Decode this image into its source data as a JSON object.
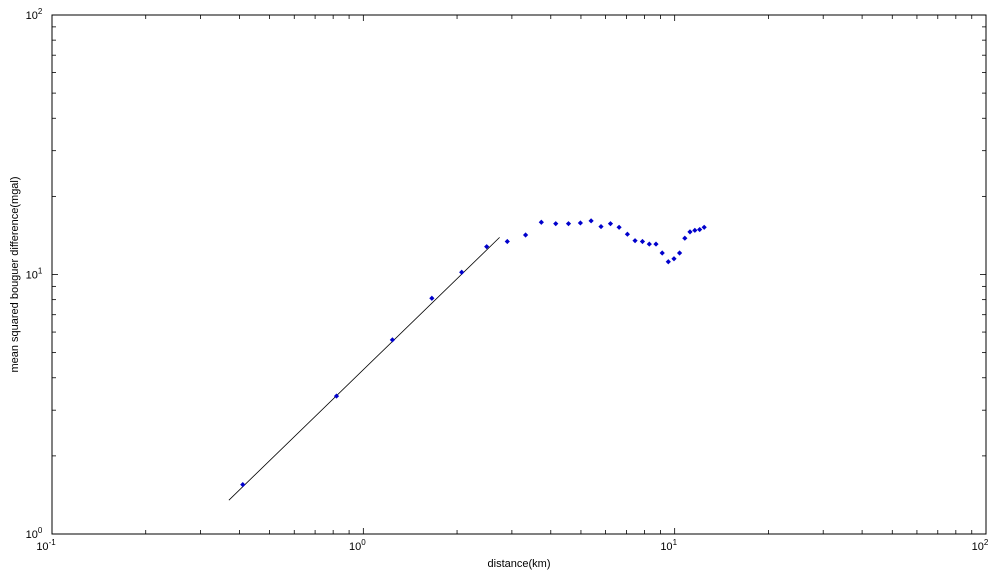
{
  "chart_data": {
    "type": "scatter",
    "title": "",
    "xlabel": "distance(km)",
    "ylabel": "mean squared bouguer difference(mgal)",
    "xscale": "log",
    "yscale": "log",
    "xlim": [
      0.1,
      100
    ],
    "ylim": [
      1,
      100
    ],
    "grid": false,
    "x_ticks": [
      {
        "value": 0.1,
        "base": "10",
        "exp": "-1"
      },
      {
        "value": 1,
        "base": "10",
        "exp": "0"
      },
      {
        "value": 10,
        "base": "10",
        "exp": "1"
      },
      {
        "value": 100,
        "base": "10",
        "exp": "2"
      }
    ],
    "y_ticks": [
      {
        "value": 1,
        "base": "10",
        "exp": "0"
      },
      {
        "value": 10,
        "base": "10",
        "exp": "1"
      },
      {
        "value": 100,
        "base": "10",
        "exp": "2"
      }
    ],
    "points_color": "#0000cc",
    "fit_color": "#000000",
    "points": [
      [
        0.41,
        1.55
      ],
      [
        0.82,
        3.4
      ],
      [
        1.24,
        5.6
      ],
      [
        1.66,
        8.1
      ],
      [
        2.07,
        10.2
      ],
      [
        2.49,
        12.8
      ],
      [
        2.9,
        13.4
      ],
      [
        3.32,
        14.2
      ],
      [
        3.73,
        15.9
      ],
      [
        4.15,
        15.7
      ],
      [
        4.56,
        15.7
      ],
      [
        4.98,
        15.8
      ],
      [
        5.39,
        16.1
      ],
      [
        5.8,
        15.3
      ],
      [
        6.22,
        15.7
      ],
      [
        6.63,
        15.2
      ],
      [
        7.05,
        14.3
      ],
      [
        7.46,
        13.5
      ],
      [
        7.88,
        13.4
      ],
      [
        8.29,
        13.1
      ],
      [
        8.71,
        13.1
      ],
      [
        9.12,
        12.1
      ],
      [
        9.54,
        11.2
      ],
      [
        9.95,
        11.5
      ],
      [
        10.37,
        12.1
      ],
      [
        10.78,
        13.8
      ],
      [
        11.2,
        14.6
      ],
      [
        11.61,
        14.8
      ],
      [
        12.03,
        14.9
      ],
      [
        12.44,
        15.2
      ]
    ],
    "fit_line": [
      [
        0.37,
        1.35
      ],
      [
        2.74,
        13.9
      ]
    ]
  }
}
